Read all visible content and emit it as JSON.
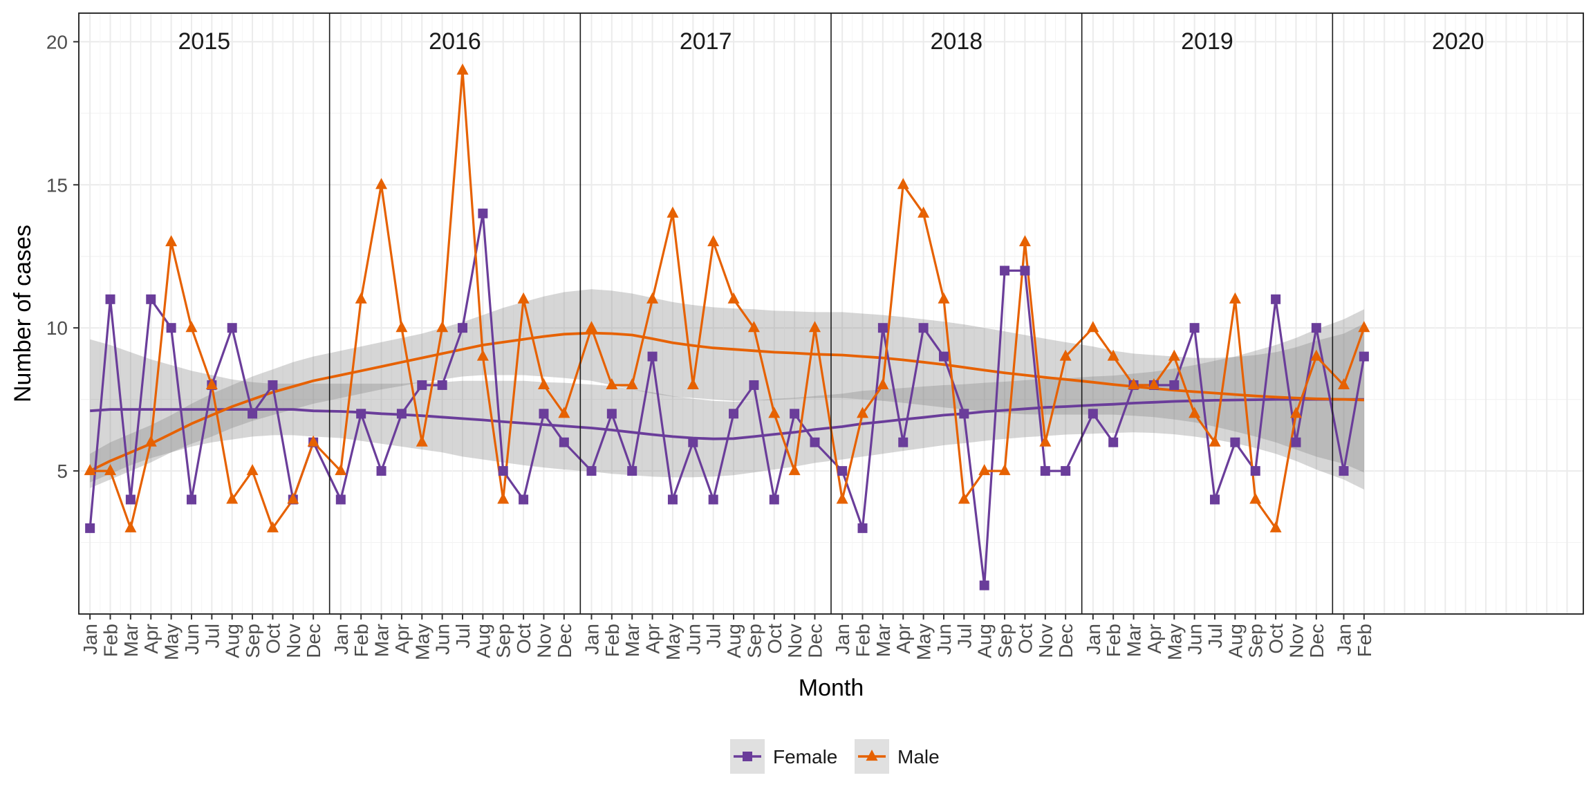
{
  "chart_data": {
    "type": "line",
    "title": "",
    "xlabel": "Month",
    "ylabel": "Number of cases",
    "ylim": [
      0,
      21
    ],
    "yticks": [
      5,
      10,
      15,
      20
    ],
    "years": [
      "2015",
      "2016",
      "2017",
      "2018",
      "2019",
      "2020"
    ],
    "months_in_panel": 12,
    "x_labels": [
      "Jan",
      "Feb",
      "Mar",
      "Apr",
      "May",
      "Jun",
      "Jul",
      "Aug",
      "Sep",
      "Oct",
      "Nov",
      "Dec",
      "Jan",
      "Feb",
      "Mar",
      "Apr",
      "May",
      "Jun",
      "Jul",
      "Aug",
      "Sep",
      "Oct",
      "Nov",
      "Dec",
      "Jan",
      "Feb",
      "Mar",
      "Apr",
      "May",
      "Jun",
      "Jul",
      "Aug",
      "Sep",
      "Oct",
      "Nov",
      "Dec",
      "Jan",
      "Feb",
      "Mar",
      "Apr",
      "May",
      "Jun",
      "Jul",
      "Aug",
      "Sep",
      "Oct",
      "Nov",
      "Dec",
      "Jan",
      "Feb",
      "Mar",
      "Apr",
      "May",
      "Jun",
      "Jul",
      "Aug",
      "Sep",
      "Oct",
      "Nov",
      "Dec",
      "Jan",
      "Feb"
    ],
    "series": [
      {
        "name": "Female",
        "color": "#6a3d9a",
        "marker": "square",
        "values": [
          3,
          11,
          4,
          11,
          10,
          4,
          8,
          10,
          7,
          8,
          4,
          6,
          4,
          7,
          5,
          7,
          8,
          8,
          10,
          14,
          5,
          4,
          7,
          6,
          5,
          7,
          5,
          9,
          4,
          6,
          4,
          7,
          8,
          4,
          7,
          6,
          5,
          3,
          10,
          6,
          10,
          9,
          7,
          1,
          12,
          12,
          5,
          5,
          7,
          6,
          8,
          8,
          8,
          10,
          4,
          6,
          5,
          11,
          6,
          10,
          5,
          9
        ],
        "smooth": [
          7.1,
          7.15,
          7.15,
          7.15,
          7.15,
          7.15,
          7.15,
          7.15,
          7.15,
          7.15,
          7.15,
          7.1,
          7.08,
          7.05,
          7.0,
          6.97,
          6.93,
          6.88,
          6.83,
          6.78,
          6.72,
          6.67,
          6.62,
          6.57,
          6.5,
          6.43,
          6.35,
          6.27,
          6.2,
          6.15,
          6.12,
          6.13,
          6.2,
          6.28,
          6.35,
          6.45,
          6.55,
          6.65,
          6.72,
          6.8,
          6.87,
          6.95,
          7.0,
          7.07,
          7.12,
          7.17,
          7.22,
          7.25,
          7.3,
          7.33,
          7.37,
          7.4,
          7.43,
          7.45,
          7.47,
          7.48,
          7.49,
          7.5,
          7.5,
          7.5,
          7.5,
          7.5
        ],
        "band_lower": [
          4.6,
          4.9,
          5.2,
          5.45,
          5.65,
          5.85,
          6.0,
          6.1,
          6.2,
          6.25,
          6.25,
          6.2,
          6.15,
          6.05,
          5.95,
          5.85,
          5.75,
          5.65,
          5.5,
          5.4,
          5.3,
          5.2,
          5.12,
          5.05,
          4.98,
          4.9,
          4.85,
          4.8,
          4.78,
          4.78,
          4.8,
          4.85,
          4.95,
          5.05,
          5.15,
          5.28,
          5.4,
          5.5,
          5.6,
          5.7,
          5.8,
          5.9,
          5.97,
          6.05,
          6.12,
          6.18,
          6.22,
          6.27,
          6.3,
          6.33,
          6.35,
          6.33,
          6.28,
          6.2,
          6.1,
          5.97,
          5.8,
          5.6,
          5.35,
          5.05,
          4.7,
          4.35
        ],
        "band_upper": [
          9.6,
          9.4,
          9.15,
          8.9,
          8.7,
          8.5,
          8.35,
          8.2,
          8.1,
          8.05,
          8.05,
          8.05,
          8.05,
          8.05,
          8.05,
          8.05,
          8.1,
          8.1,
          8.15,
          8.15,
          8.15,
          8.15,
          8.1,
          8.08,
          8.02,
          7.97,
          7.85,
          7.75,
          7.62,
          7.52,
          7.45,
          7.42,
          7.45,
          7.52,
          7.56,
          7.62,
          7.7,
          7.8,
          7.85,
          7.9,
          7.95,
          8.0,
          8.03,
          8.08,
          8.12,
          8.17,
          8.22,
          8.23,
          8.3,
          8.33,
          8.4,
          8.47,
          8.58,
          8.7,
          8.85,
          9.0,
          9.2,
          9.4,
          9.65,
          9.95,
          10.3,
          10.65
        ]
      },
      {
        "name": "Male",
        "color": "#e66101",
        "marker": "triangle",
        "values": [
          5,
          5,
          3,
          6,
          13,
          10,
          8,
          4,
          5,
          3,
          4,
          6,
          5,
          11,
          15,
          10,
          6,
          10,
          19,
          9,
          4,
          11,
          8,
          7,
          10,
          8,
          8,
          11,
          14,
          8,
          13,
          11,
          10,
          7,
          5,
          10,
          4,
          7,
          8,
          15,
          14,
          11,
          4,
          5,
          5,
          13,
          6,
          9,
          10,
          9,
          8,
          8,
          9,
          7,
          6,
          11,
          4,
          3,
          7,
          9,
          8,
          10
        ],
        "smooth": [
          5.0,
          5.35,
          5.65,
          5.95,
          6.3,
          6.65,
          6.95,
          7.25,
          7.5,
          7.75,
          7.95,
          8.15,
          8.35,
          8.5,
          8.65,
          8.8,
          8.95,
          9.1,
          9.25,
          9.4,
          9.5,
          9.6,
          9.7,
          9.78,
          9.82,
          9.8,
          9.75,
          9.62,
          9.48,
          9.38,
          9.3,
          9.25,
          9.2,
          9.15,
          9.12,
          9.08,
          9.05,
          9.0,
          8.95,
          8.88,
          8.8,
          8.72,
          8.62,
          8.52,
          8.43,
          8.35,
          8.27,
          8.2,
          8.1,
          8.02,
          7.95,
          7.88,
          7.82,
          7.77,
          7.72,
          7.67,
          7.62,
          7.58,
          7.55,
          7.52,
          7.5,
          7.48
        ],
        "band_lower": [
          4.4,
          4.7,
          5.0,
          5.3,
          5.65,
          5.95,
          6.2,
          6.5,
          6.75,
          6.95,
          7.15,
          7.35,
          7.55,
          7.7,
          7.85,
          7.97,
          8.1,
          8.2,
          8.3,
          8.35,
          8.35,
          8.35,
          8.3,
          8.25,
          8.15,
          8.0,
          7.85,
          7.7,
          7.6,
          7.55,
          7.5,
          7.45,
          7.45,
          7.48,
          7.52,
          7.55,
          7.55,
          7.5,
          7.45,
          7.38,
          7.3,
          7.22,
          7.15,
          7.08,
          7.02,
          6.98,
          6.97,
          6.97,
          6.97,
          6.97,
          6.93,
          6.88,
          6.8,
          6.7,
          6.55,
          6.38,
          6.2,
          6.0,
          5.75,
          5.5,
          5.25,
          4.95
        ],
        "band_upper": [
          5.6,
          6.0,
          6.3,
          6.6,
          6.95,
          7.35,
          7.7,
          8.0,
          8.3,
          8.55,
          8.8,
          9.0,
          9.2,
          9.35,
          9.5,
          9.65,
          9.8,
          10.0,
          10.2,
          10.45,
          10.7,
          10.9,
          11.1,
          11.25,
          11.35,
          11.3,
          11.2,
          11.05,
          10.9,
          10.8,
          10.72,
          10.68,
          10.65,
          10.6,
          10.58,
          10.55,
          10.55,
          10.5,
          10.45,
          10.38,
          10.3,
          10.22,
          10.12,
          10.0,
          9.88,
          9.75,
          9.62,
          9.5,
          9.35,
          9.2,
          9.1,
          9.05,
          9.0,
          8.95,
          8.95,
          8.98,
          9.05,
          9.15,
          9.32,
          9.55,
          9.8,
          10.15
        ]
      }
    ],
    "legend": {
      "position": "bottom",
      "items": [
        "Female",
        "Male"
      ]
    }
  }
}
